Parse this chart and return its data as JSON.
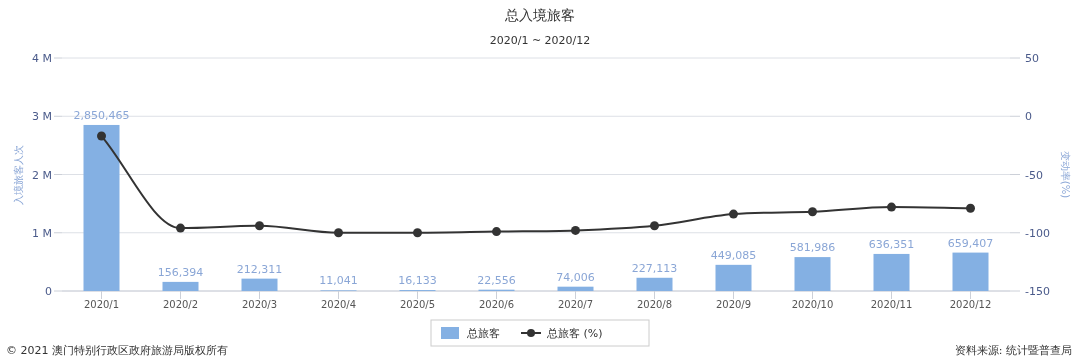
{
  "chart_data": {
    "type": "bar",
    "title": "总入境旅客",
    "subtitle": "2020/1 ~ 2020/12",
    "ylabel": "入境旅客人次",
    "y2label": "变动率(%)",
    "categories": [
      "2020/1",
      "2020/2",
      "2020/3",
      "2020/4",
      "2020/5",
      "2020/6",
      "2020/7",
      "2020/8",
      "2020/9",
      "2020/10",
      "2020/11",
      "2020/12"
    ],
    "series": [
      {
        "name": "总旅客",
        "color": "#84b0e3",
        "values": [
          2850465,
          156394,
          212311,
          11041,
          16133,
          22556,
          74006,
          227113,
          449085,
          581986,
          636351,
          659407
        ],
        "value_labels": [
          "2,850,465",
          "156,394",
          "212,311",
          "11,041",
          "16,133",
          "22,556",
          "74,006",
          "227,113",
          "449,085",
          "581,986",
          "636,351",
          "659,407"
        ]
      },
      {
        "name": "总旅客 (%)",
        "type": "line",
        "axis": "y2",
        "color": "#333333",
        "marker": "circle",
        "values": [
          -17,
          -96,
          -94,
          -100,
          -100,
          -99,
          -98,
          -94,
          -84,
          -82,
          -78,
          -79
        ]
      }
    ],
    "ylim": [
      0,
      4000000
    ],
    "yticks": [
      {
        "value": 0,
        "label": "0"
      },
      {
        "value": 1000000,
        "label": "1 M"
      },
      {
        "value": 2000000,
        "label": "2 M"
      },
      {
        "value": 3000000,
        "label": "3 M"
      },
      {
        "value": 4000000,
        "label": "4 M"
      }
    ],
    "y2lim": [
      -150,
      50
    ],
    "y2ticks": [
      -150,
      -100,
      -50,
      0,
      50
    ],
    "grid": "y",
    "legend": "bottom",
    "annotations": [
      "© 2021 澳门特别行政区政府旅游局版权所有",
      "资料来源: 统计暨普查局"
    ]
  }
}
